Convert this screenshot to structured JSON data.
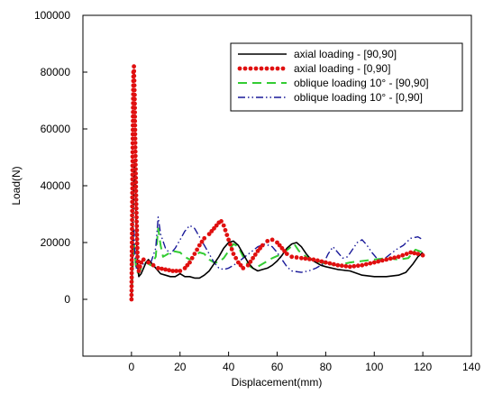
{
  "chart_data": {
    "type": "line",
    "xlabel": "Displacement(mm)",
    "ylabel": "Load(N)",
    "xlim": [
      -20,
      140
    ],
    "ylim": [
      -20000,
      100000
    ],
    "xticks": [
      0,
      20,
      40,
      60,
      80,
      100,
      120,
      140
    ],
    "yticks": [
      0,
      20000,
      40000,
      60000,
      80000,
      100000
    ],
    "grid": false,
    "legend_position": "top-right",
    "series": [
      {
        "name": "axial loading - [90,90]",
        "color": "#000000",
        "style": "solid",
        "points": [
          [
            0,
            0
          ],
          [
            0.3,
            10000
          ],
          [
            0.6,
            25000
          ],
          [
            0.9,
            40000
          ],
          [
            1.2,
            48000
          ],
          [
            1.6,
            40000
          ],
          [
            2,
            22000
          ],
          [
            2.5,
            12000
          ],
          [
            3,
            8000
          ],
          [
            4,
            9000
          ],
          [
            5,
            11000
          ],
          [
            6,
            13000
          ],
          [
            7,
            14000
          ],
          [
            8,
            13000
          ],
          [
            9,
            12000
          ],
          [
            10,
            11000
          ],
          [
            12,
            9000
          ],
          [
            14,
            8500
          ],
          [
            16,
            8000
          ],
          [
            18,
            8000
          ],
          [
            20,
            9000
          ],
          [
            22,
            8000
          ],
          [
            24,
            8000
          ],
          [
            26,
            7500
          ],
          [
            28,
            7500
          ],
          [
            30,
            8500
          ],
          [
            32,
            10000
          ],
          [
            34,
            12500
          ],
          [
            36,
            15000
          ],
          [
            38,
            18000
          ],
          [
            40,
            20000
          ],
          [
            42,
            20500
          ],
          [
            44,
            19000
          ],
          [
            46,
            16000
          ],
          [
            48,
            13000
          ],
          [
            50,
            11000
          ],
          [
            52,
            10000
          ],
          [
            54,
            10500
          ],
          [
            56,
            11000
          ],
          [
            58,
            12000
          ],
          [
            60,
            13500
          ],
          [
            62,
            15500
          ],
          [
            64,
            18000
          ],
          [
            66,
            19500
          ],
          [
            68,
            20000
          ],
          [
            70,
            18500
          ],
          [
            72,
            16000
          ],
          [
            74,
            14000
          ],
          [
            76,
            13000
          ],
          [
            78,
            12000
          ],
          [
            80,
            11500
          ],
          [
            85,
            10500
          ],
          [
            90,
            10000
          ],
          [
            95,
            8500
          ],
          [
            100,
            8000
          ],
          [
            105,
            8000
          ],
          [
            110,
            8500
          ],
          [
            113,
            9500
          ],
          [
            116,
            12500
          ],
          [
            118,
            15000
          ],
          [
            120,
            16500
          ]
        ]
      },
      {
        "name": "axial loading - [0,90]",
        "color": "#e01010",
        "style": "dotted",
        "points": [
          [
            0,
            0
          ],
          [
            0.2,
            20000
          ],
          [
            0.5,
            55000
          ],
          [
            0.8,
            80000
          ],
          [
            1.0,
            82000
          ],
          [
            1.3,
            72000
          ],
          [
            1.6,
            52000
          ],
          [
            2,
            32000
          ],
          [
            2.5,
            15000
          ],
          [
            3,
            10000
          ],
          [
            4,
            13000
          ],
          [
            5,
            14000
          ],
          [
            7,
            13000
          ],
          [
            9,
            12000
          ],
          [
            11,
            11000
          ],
          [
            14,
            10500
          ],
          [
            17,
            10000
          ],
          [
            20,
            10000
          ],
          [
            22,
            11000
          ],
          [
            24,
            13000
          ],
          [
            26,
            16000
          ],
          [
            28,
            19000
          ],
          [
            30,
            21500
          ],
          [
            32,
            23000
          ],
          [
            34,
            25000
          ],
          [
            36,
            27000
          ],
          [
            37,
            27500
          ],
          [
            38,
            26000
          ],
          [
            40,
            21000
          ],
          [
            42,
            16000
          ],
          [
            44,
            13000
          ],
          [
            46,
            11000
          ],
          [
            48,
            12000
          ],
          [
            50,
            14500
          ],
          [
            52,
            17000
          ],
          [
            54,
            19000
          ],
          [
            56,
            20500
          ],
          [
            58,
            21000
          ],
          [
            60,
            20000
          ],
          [
            62,
            18000
          ],
          [
            64,
            16000
          ],
          [
            66,
            15000
          ],
          [
            70,
            14500
          ],
          [
            75,
            14000
          ],
          [
            80,
            13000
          ],
          [
            85,
            12000
          ],
          [
            90,
            11500
          ],
          [
            95,
            12000
          ],
          [
            100,
            13000
          ],
          [
            105,
            14000
          ],
          [
            110,
            15000
          ],
          [
            115,
            16500
          ],
          [
            118,
            16000
          ],
          [
            120,
            15500
          ]
        ]
      },
      {
        "name": "oblique loading 10° - [90,90]",
        "color": "#33cc33",
        "style": "dashed",
        "points": [
          [
            0,
            0
          ],
          [
            0.5,
            10000
          ],
          [
            1,
            20000
          ],
          [
            1.5,
            15000
          ],
          [
            2,
            10000
          ],
          [
            3,
            9000
          ],
          [
            4,
            11000
          ],
          [
            6,
            13000
          ],
          [
            8,
            12000
          ],
          [
            10,
            15000
          ],
          [
            11,
            25000
          ],
          [
            12,
            19000
          ],
          [
            13,
            15000
          ],
          [
            15,
            16000
          ],
          [
            17,
            17000
          ],
          [
            20,
            16500
          ],
          [
            22,
            15000
          ],
          [
            24,
            14000
          ],
          [
            26,
            15000
          ],
          [
            28,
            16500
          ],
          [
            30,
            16000
          ],
          [
            32,
            14000
          ],
          [
            34,
            13000
          ],
          [
            36,
            13000
          ],
          [
            38,
            14500
          ],
          [
            40,
            17000
          ],
          [
            42,
            19500
          ],
          [
            44,
            18500
          ],
          [
            46,
            15000
          ],
          [
            48,
            12000
          ],
          [
            50,
            11000
          ],
          [
            52,
            11500
          ],
          [
            55,
            13000
          ],
          [
            58,
            14500
          ],
          [
            62,
            16000
          ],
          [
            65,
            18000
          ],
          [
            67,
            19500
          ],
          [
            69,
            17000
          ],
          [
            72,
            15000
          ],
          [
            76,
            13500
          ],
          [
            80,
            12500
          ],
          [
            85,
            12000
          ],
          [
            90,
            13000
          ],
          [
            95,
            13500
          ],
          [
            100,
            14000
          ],
          [
            105,
            14500
          ],
          [
            110,
            14000
          ],
          [
            114,
            14500
          ],
          [
            117,
            17500
          ],
          [
            120,
            16500
          ]
        ]
      },
      {
        "name": "oblique loading 10° - [0,90]",
        "color": "#1a1a99",
        "style": "dash-dot-dot",
        "points": [
          [
            0,
            0
          ],
          [
            0.5,
            15000
          ],
          [
            1,
            25000
          ],
          [
            1.5,
            15000
          ],
          [
            2,
            11000
          ],
          [
            4,
            12000
          ],
          [
            6,
            13000
          ],
          [
            8,
            13000
          ],
          [
            10,
            18000
          ],
          [
            11,
            29000
          ],
          [
            12,
            23000
          ],
          [
            14,
            18000
          ],
          [
            16,
            16000
          ],
          [
            18,
            18000
          ],
          [
            20,
            21000
          ],
          [
            22,
            24000
          ],
          [
            24,
            26000
          ],
          [
            26,
            25000
          ],
          [
            28,
            22000
          ],
          [
            30,
            19000
          ],
          [
            32,
            16000
          ],
          [
            34,
            13000
          ],
          [
            36,
            11000
          ],
          [
            38,
            10500
          ],
          [
            40,
            11000
          ],
          [
            43,
            12500
          ],
          [
            46,
            14500
          ],
          [
            49,
            16500
          ],
          [
            52,
            18500
          ],
          [
            55,
            19500
          ],
          [
            58,
            18500
          ],
          [
            60,
            16500
          ],
          [
            62,
            14000
          ],
          [
            64,
            11500
          ],
          [
            66,
            10000
          ],
          [
            70,
            9500
          ],
          [
            73,
            10000
          ],
          [
            76,
            11000
          ],
          [
            79,
            12500
          ],
          [
            81,
            16000
          ],
          [
            83,
            18500
          ],
          [
            85,
            16500
          ],
          [
            87,
            14500
          ],
          [
            89,
            15000
          ],
          [
            91,
            17500
          ],
          [
            93,
            20000
          ],
          [
            95,
            21000
          ],
          [
            97,
            19000
          ],
          [
            99,
            16500
          ],
          [
            101,
            14500
          ],
          [
            103,
            13500
          ],
          [
            106,
            15500
          ],
          [
            109,
            17500
          ],
          [
            112,
            19000
          ],
          [
            115,
            21500
          ],
          [
            118,
            22000
          ],
          [
            120,
            21000
          ]
        ]
      }
    ]
  }
}
